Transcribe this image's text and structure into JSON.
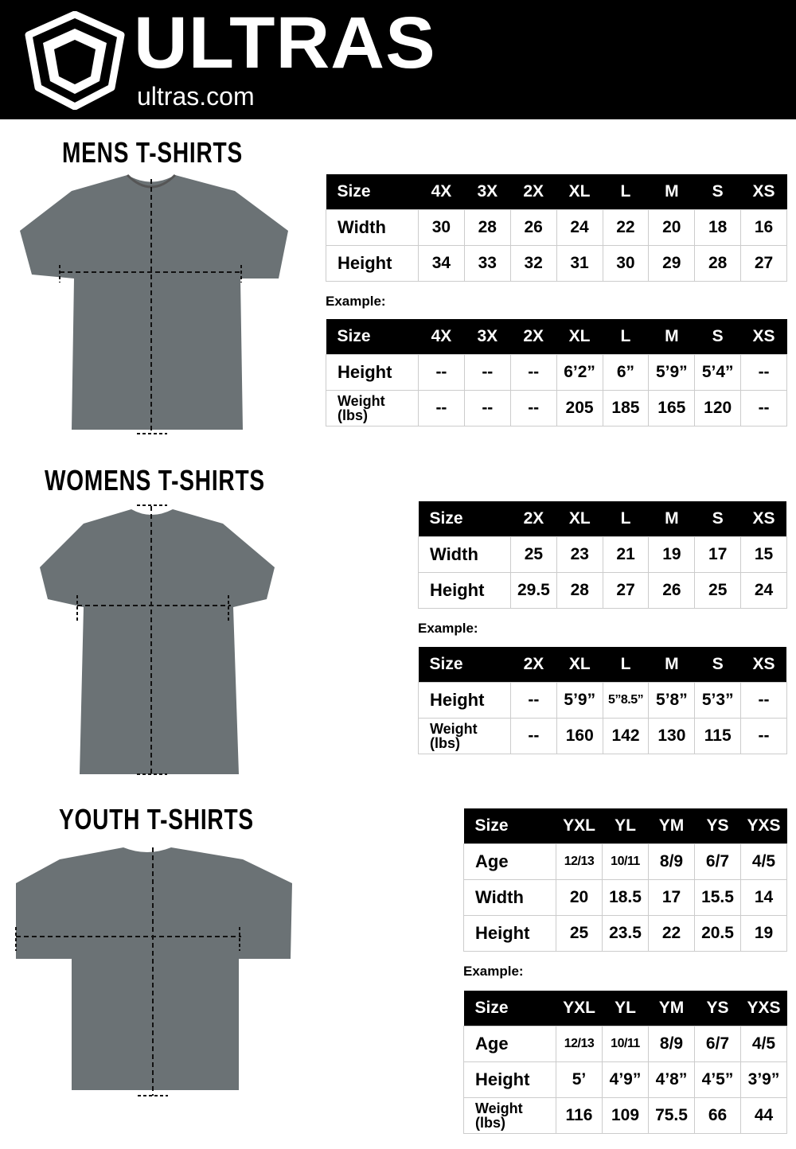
{
  "header": {
    "brand": "ULTRAS",
    "url": "ultras.com"
  },
  "example_label": "Example:",
  "sections": [
    {
      "title": "MENS T-SHIRTS",
      "size_table": {
        "headers": [
          "Size",
          "4X",
          "3X",
          "2X",
          "XL",
          "L",
          "M",
          "S",
          "XS"
        ],
        "rows": [
          [
            "Width",
            "30",
            "28",
            "26",
            "24",
            "22",
            "20",
            "18",
            "16"
          ],
          [
            "Height",
            "34",
            "33",
            "32",
            "31",
            "30",
            "29",
            "28",
            "27"
          ]
        ]
      },
      "example_table": {
        "headers": [
          "Size",
          "4X",
          "3X",
          "2X",
          "XL",
          "L",
          "M",
          "S",
          "XS"
        ],
        "rows": [
          [
            "Height",
            "--",
            "--",
            "--",
            "6’2”",
            "6”",
            "5’9”",
            "5’4”",
            "--"
          ],
          [
            "Weight (lbs)",
            "--",
            "--",
            "--",
            "205",
            "185",
            "165",
            "120",
            "--"
          ]
        ]
      }
    },
    {
      "title": "WOMENS T-SHIRTS",
      "size_table": {
        "headers": [
          "Size",
          "2X",
          "XL",
          "L",
          "M",
          "S",
          "XS"
        ],
        "rows": [
          [
            "Width",
            "25",
            "23",
            "21",
            "19",
            "17",
            "15"
          ],
          [
            "Height",
            "29.5",
            "28",
            "27",
            "26",
            "25",
            "24"
          ]
        ]
      },
      "example_table": {
        "headers": [
          "Size",
          "2X",
          "XL",
          "L",
          "M",
          "S",
          "XS"
        ],
        "rows": [
          [
            "Height",
            "--",
            "5’9”",
            "5”8.5”",
            "5’8”",
            "5’3”",
            "--"
          ],
          [
            "Weight (lbs)",
            "--",
            "160",
            "142",
            "130",
            "115",
            "--"
          ]
        ]
      }
    },
    {
      "title": "YOUTH T-SHIRTS",
      "size_table": {
        "headers": [
          "Size",
          "YXL",
          "YL",
          "YM",
          "YS",
          "YXS"
        ],
        "rows": [
          [
            "Age",
            "12/13",
            "10/11",
            "8/9",
            "6/7",
            "4/5"
          ],
          [
            "Width",
            "20",
            "18.5",
            "17",
            "15.5",
            "14"
          ],
          [
            "Height",
            "25",
            "23.5",
            "22",
            "20.5",
            "19"
          ]
        ]
      },
      "example_table": {
        "headers": [
          "Size",
          "YXL",
          "YL",
          "YM",
          "YS",
          "YXS"
        ],
        "rows": [
          [
            "Age",
            "12/13",
            "10/11",
            "8/9",
            "6/7",
            "4/5"
          ],
          [
            "Height",
            "5’",
            "4’9”",
            "4’8”",
            "4’5”",
            "3’9”"
          ],
          [
            "Weight (lbs)",
            "116",
            "109",
            "75.5",
            "66",
            "44"
          ]
        ]
      }
    }
  ],
  "colors": {
    "shirt": "#6b7275",
    "header_bg": "#000000"
  }
}
